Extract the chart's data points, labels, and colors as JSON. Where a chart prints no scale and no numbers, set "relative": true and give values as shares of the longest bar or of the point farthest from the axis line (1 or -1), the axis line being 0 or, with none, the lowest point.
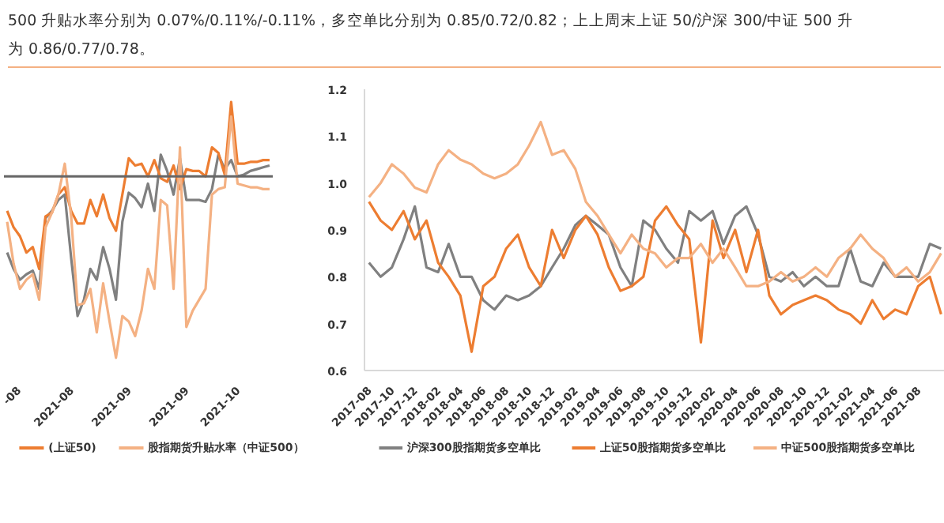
{
  "chart_data": [
    {
      "type": "line",
      "relative": true,
      "legend": "bottom",
      "tick_labels": "x",
      "annotations": [
        "500 升贴水率分别为 0.07%/0.11%/-0.11%，多空单比分别为 0.85/0.72/0.82；上上周末上证 50/沪深 300/中证 500 升",
        "为 0.86/0.77/0.78。"
      ],
      "categories": [
        null,
        "-08",
        null,
        null,
        null,
        null,
        null,
        null,
        null,
        null,
        "2021-08",
        null,
        null,
        null,
        null,
        null,
        null,
        null,
        null,
        "2021-09",
        null,
        null,
        null,
        null,
        null,
        null,
        null,
        null,
        "2021-09",
        null,
        null,
        null,
        null,
        null,
        null,
        null,
        "2021-10",
        null,
        null,
        null,
        null,
        null
      ],
      "series": [
        {
          "color": "#808080",
          "values": [
            -0.42,
            -0.51,
            -0.57,
            -0.54,
            -0.52,
            -0.62,
            -0.23,
            -0.19,
            -0.13,
            -0.1,
            -0.45,
            -0.77,
            -0.68,
            -0.51,
            -0.57,
            -0.39,
            -0.51,
            -0.68,
            -0.25,
            -0.09,
            -0.12,
            -0.17,
            -0.04,
            -0.19,
            0.12,
            0.03,
            -0.1,
            0.1,
            -0.13,
            -0.13,
            -0.13,
            -0.14,
            -0.07,
            0.12,
            0.04,
            0.09,
            0,
            0.01,
            0.03,
            0.04,
            0.05,
            0.06
          ]
        },
        {
          "name": "(上证50)",
          "color": "#ed7d31",
          "values": [
            -0.19,
            -0.28,
            -0.33,
            -0.42,
            -0.39,
            -0.51,
            -0.22,
            -0.2,
            -0.1,
            -0.06,
            -0.19,
            -0.26,
            -0.26,
            -0.13,
            -0.22,
            -0.1,
            -0.23,
            -0.3,
            -0.1,
            0.1,
            0.06,
            0.07,
            0,
            0.09,
            -0.01,
            -0.03,
            0.06,
            -0.07,
            0.04,
            0.03,
            0.03,
            0,
            0.16,
            0.13,
            0.01,
            0.41,
            0.07,
            0.07,
            0.08,
            0.08,
            0.09,
            0.09
          ]
        },
        {
          "name": "股指期货升贴水率（中证500）",
          "color": "#f4b183",
          "values": [
            -0.25,
            -0.48,
            -0.62,
            -0.57,
            -0.54,
            -0.68,
            -0.28,
            -0.2,
            -0.1,
            0.07,
            -0.22,
            -0.71,
            -0.7,
            -0.62,
            -0.86,
            -0.59,
            -0.8,
            -1,
            -0.77,
            -0.8,
            -0.88,
            -0.74,
            -0.51,
            -0.62,
            -0.13,
            -0.16,
            -0.62,
            0.16,
            -0.83,
            -0.74,
            -0.68,
            -0.62,
            -0.1,
            -0.07,
            -0.06,
            0.33,
            -0.04,
            -0.05,
            -0.06,
            -0.06,
            -0.07,
            -0.07
          ]
        }
      ]
    },
    {
      "type": "line",
      "legend": "bottom",
      "x": [
        "2017-08",
        "2017-09",
        "2017-10",
        "2017-11",
        "2017-12",
        "2018-01",
        "2018-02",
        "2018-03",
        "2018-04",
        "2018-05",
        "2018-06",
        "2018-07",
        "2018-08",
        "2018-09",
        "2018-10",
        "2018-11",
        "2018-12",
        "2019-01",
        "2019-02",
        "2019-03",
        "2019-04",
        "2019-05",
        "2019-06",
        "2019-07",
        "2019-08",
        "2019-09",
        "2019-10",
        "2019-11",
        "2019-12",
        "2020-01",
        "2020-02",
        "2020-03",
        "2020-04",
        "2020-05",
        "2020-06",
        "2020-07",
        "2020-08",
        "2020-09",
        "2020-10",
        "2020-11",
        "2020-12",
        "2021-01",
        "2021-02",
        "2021-03",
        "2021-04",
        "2021-05",
        "2021-06",
        "2021-07",
        "2021-08",
        "2021-09",
        "2021-10"
      ],
      "xlim": [
        "2017-07-20",
        "2021-10-15"
      ],
      "xticks": [
        "2017-08",
        "2017-10",
        "2017-12",
        "2018-02",
        "2018-04",
        "2018-06",
        "2018-08",
        "2018-10",
        "2018-12",
        "2019-02",
        "2019-04",
        "2019-06",
        "2019-08",
        "2019-10",
        "2019-12",
        "2020-02",
        "2020-04",
        "2020-06",
        "2020-08",
        "2020-10",
        "2020-12",
        "2021-02",
        "2021-04",
        "2021-06",
        "2021-08"
      ],
      "ylim": [
        0.6,
        1.2
      ],
      "yticks": [
        {
          "value": 0.6,
          "label": "0.6"
        },
        {
          "value": 0.7,
          "label": "0.7"
        },
        {
          "value": 0.8,
          "label": "0.8"
        },
        {
          "value": 0.9,
          "label": "0.9"
        },
        {
          "value": 1.0,
          "label": "1.0"
        },
        {
          "value": 1.1,
          "label": "1.1"
        },
        {
          "value": 1.2,
          "label": "1.2"
        }
      ],
      "series": [
        {
          "name": "沪深300股指期货多空单比",
          "color": "#808080",
          "values": [
            0.83,
            0.8,
            0.82,
            0.88,
            0.95,
            0.82,
            0.81,
            0.87,
            0.8,
            0.8,
            0.75,
            0.73,
            0.76,
            0.75,
            0.76,
            0.78,
            0.82,
            0.86,
            0.91,
            0.93,
            0.91,
            0.89,
            0.82,
            0.78,
            0.92,
            0.9,
            0.86,
            0.83,
            0.94,
            0.92,
            0.94,
            0.87,
            0.93,
            0.95,
            0.89,
            0.8,
            0.79,
            0.81,
            0.78,
            0.8,
            0.78,
            0.78,
            0.86,
            0.79,
            0.78,
            0.83,
            0.8,
            0.8,
            0.8,
            0.87,
            0.86
          ]
        },
        {
          "name": "上证50股指期货多空单比",
          "color": "#ed7d31",
          "values": [
            0.96,
            0.92,
            0.9,
            0.94,
            0.88,
            0.92,
            0.83,
            0.8,
            0.76,
            0.64,
            0.78,
            0.8,
            0.86,
            0.89,
            0.82,
            0.78,
            0.9,
            0.84,
            0.9,
            0.93,
            0.89,
            0.82,
            0.77,
            0.78,
            0.8,
            0.92,
            0.95,
            0.91,
            0.88,
            0.66,
            0.92,
            0.84,
            0.9,
            0.81,
            0.9,
            0.76,
            0.72,
            0.74,
            0.75,
            0.76,
            0.75,
            0.73,
            0.72,
            0.7,
            0.75,
            0.71,
            0.73,
            0.72,
            0.78,
            0.8,
            0.72
          ]
        },
        {
          "name": "中证500股指期货多空单比",
          "color": "#f4b183",
          "values": [
            0.97,
            1.0,
            1.04,
            1.02,
            0.99,
            0.98,
            1.04,
            1.07,
            1.05,
            1.04,
            1.02,
            1.01,
            1.02,
            1.04,
            1.08,
            1.13,
            1.06,
            1.07,
            1.03,
            0.96,
            0.93,
            0.89,
            0.85,
            0.89,
            0.86,
            0.85,
            0.82,
            0.84,
            0.84,
            0.87,
            0.83,
            0.86,
            0.82,
            0.78,
            0.78,
            0.79,
            0.81,
            0.79,
            0.8,
            0.82,
            0.8,
            0.84,
            0.86,
            0.89,
            0.86,
            0.84,
            0.8,
            0.82,
            0.79,
            0.81,
            0.85
          ]
        }
      ]
    }
  ]
}
